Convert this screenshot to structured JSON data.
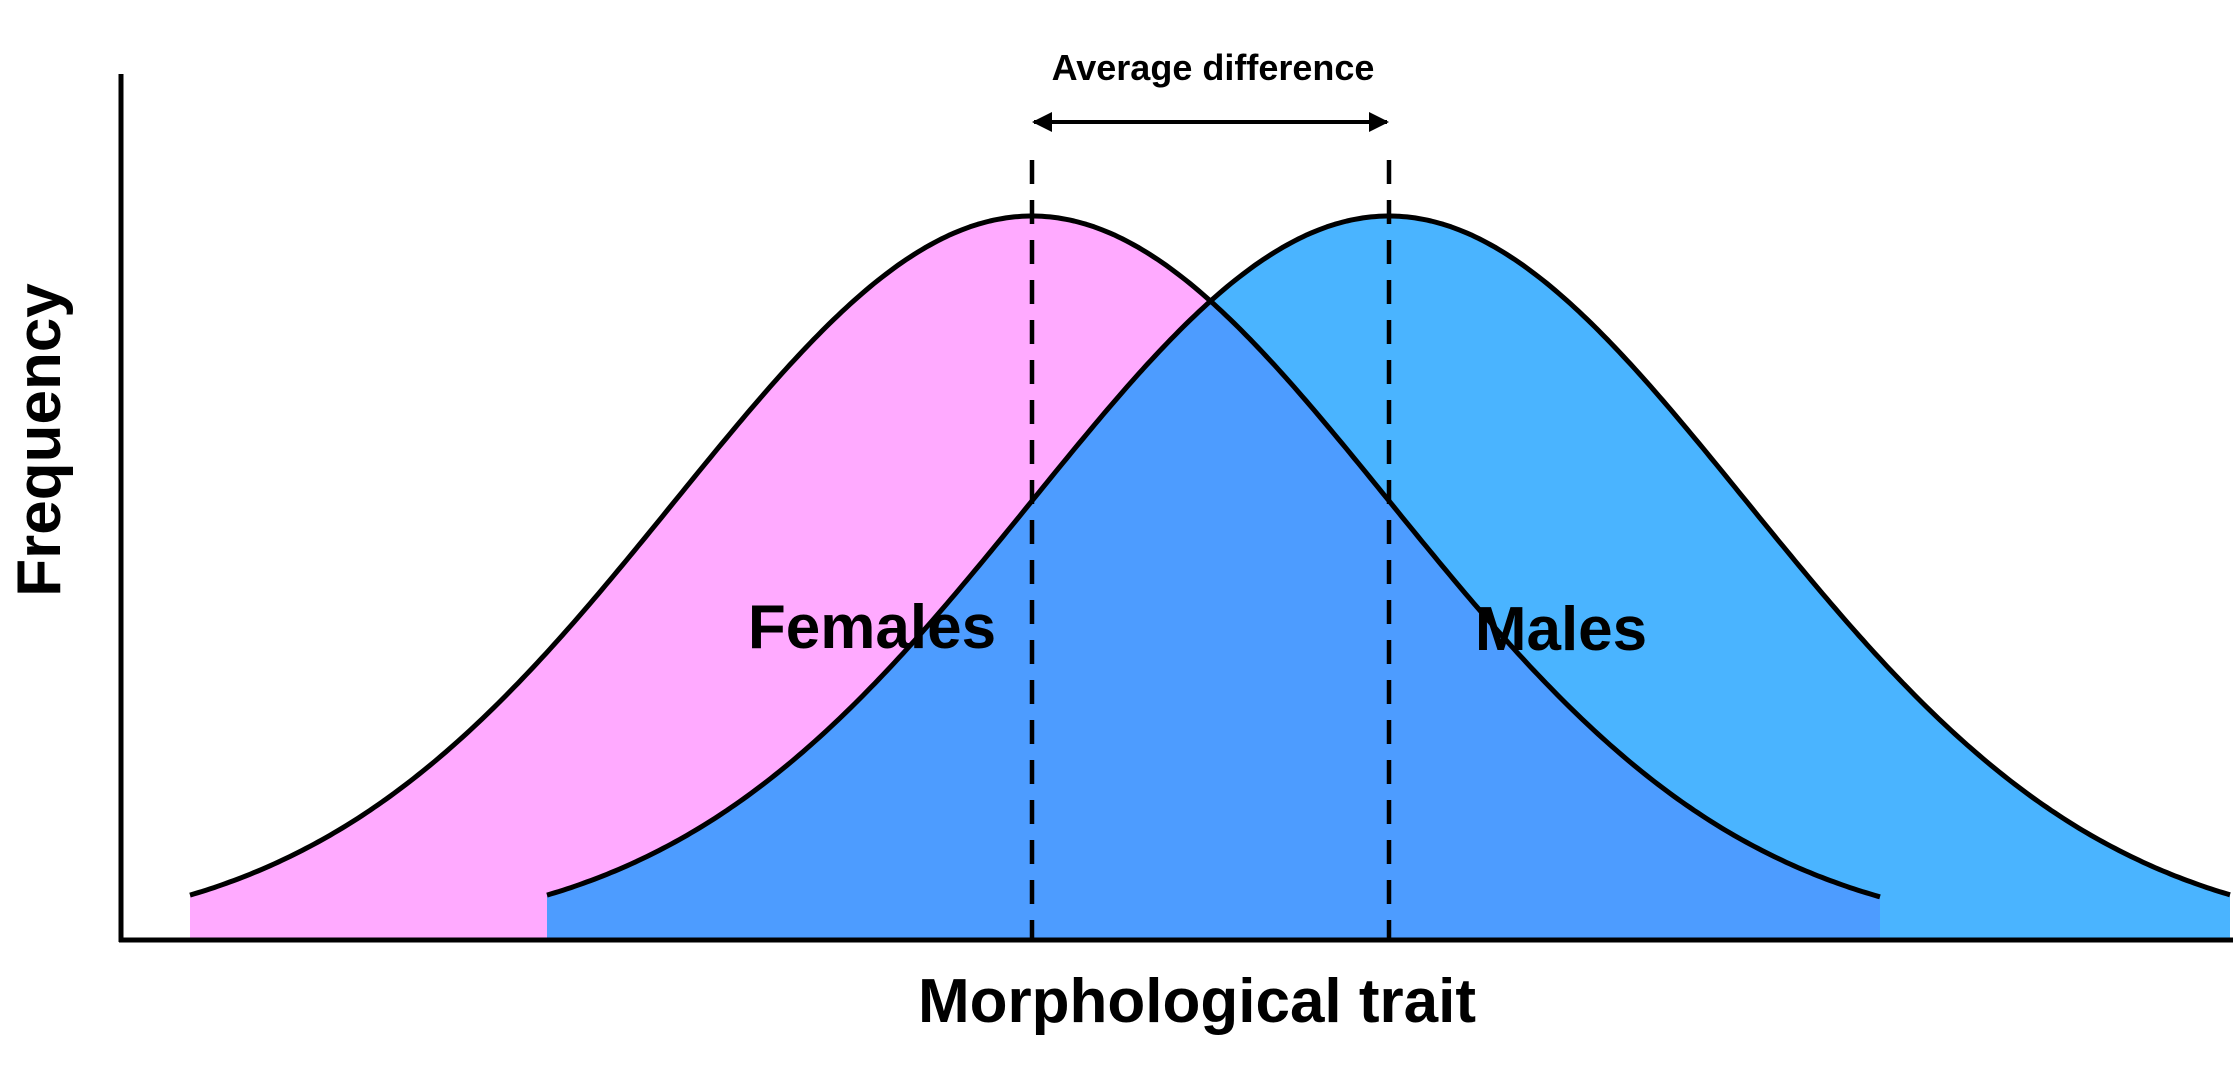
{
  "labels": {
    "x_axis": "Morphological trait",
    "y_axis": "Frequency",
    "annotation": "Average difference"
  },
  "distributions": [
    {
      "name": "Females",
      "color": "#ffaaff",
      "mean": 0,
      "sd": 1
    },
    {
      "name": "Males",
      "color": "#4ab4ff",
      "mean": 1,
      "sd": 1
    }
  ],
  "overlap_color": "#4d9cff"
}
